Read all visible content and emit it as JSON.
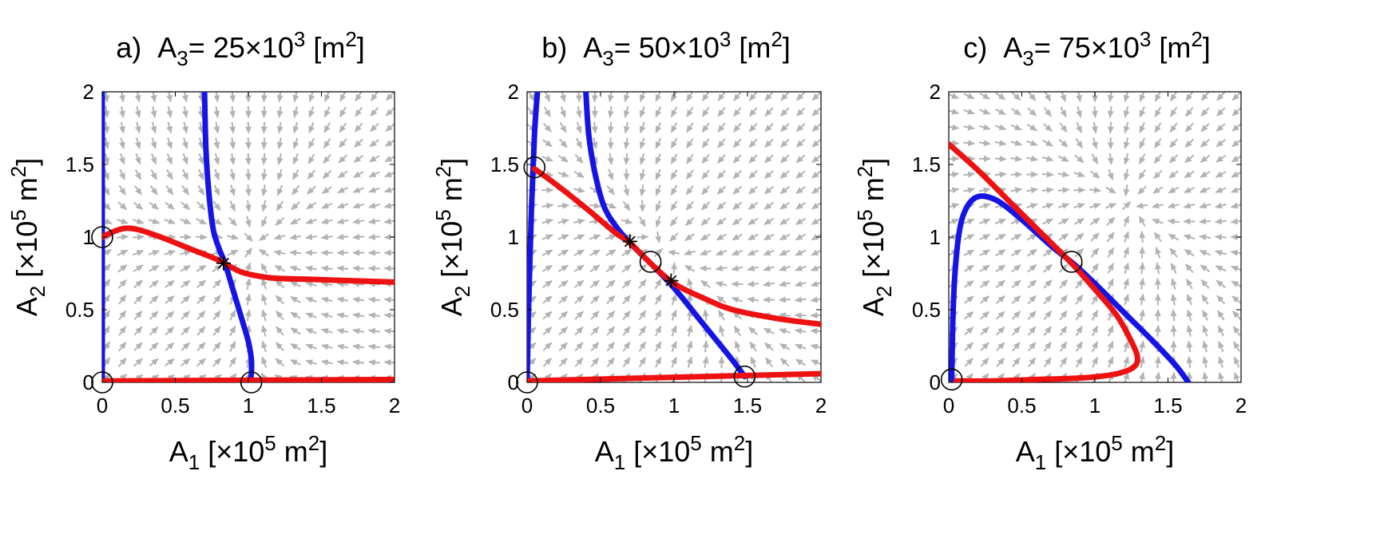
{
  "figure": {
    "colors": {
      "nullcline_a1": "#1414e6",
      "nullcline_a2": "#ee1111",
      "vector_field": "#b3b3b3",
      "axes": "#000000"
    }
  },
  "chart_data": [
    {
      "type": "line",
      "panel": "a)",
      "title": {
        "prefix": "a)",
        "var": "A",
        "sub": "3",
        "rest": "= 25×10",
        "exp": "3",
        "unit": " [m",
        "unit_exp": "2",
        "close": "]"
      },
      "xlabel": {
        "var": "A",
        "sub": "1",
        "rest": " [×10",
        "exp": "5",
        "unit": " m",
        "unit_exp": "2",
        "close": "]"
      },
      "ylabel": {
        "var": "A",
        "sub": "2",
        "rest": " [×10",
        "exp": "5",
        "unit": " m",
        "unit_exp": "2",
        "close": "]"
      },
      "xlim": [
        0,
        2
      ],
      "ylim": [
        0,
        2
      ],
      "xticks": [
        "0",
        "0.5",
        "1",
        "1.5",
        "2"
      ],
      "yticks": [
        "0",
        "0.5",
        "1",
        "1.5",
        "2"
      ],
      "vector_field": true,
      "series": [
        {
          "color": "blue",
          "x": [
            0,
            0
          ],
          "y": [
            0,
            2
          ]
        },
        {
          "color": "blue",
          "x": [
            0.7,
            0.71,
            0.73,
            0.76,
            0.8,
            0.84,
            0.9,
            0.96,
            1.0,
            1.02,
            1.02,
            1.01
          ],
          "y": [
            2.0,
            1.6,
            1.3,
            1.05,
            0.92,
            0.82,
            0.62,
            0.42,
            0.28,
            0.16,
            0.06,
            0.0
          ]
        },
        {
          "color": "red",
          "x": [
            0,
            2
          ],
          "y": [
            0.01,
            0.02
          ]
        },
        {
          "color": "red",
          "x": [
            0.0,
            0.06,
            0.15,
            0.25,
            0.4,
            0.6,
            0.8,
            0.95,
            1.15,
            1.4,
            1.7,
            2.0
          ],
          "y": [
            1.0,
            1.03,
            1.06,
            1.05,
            1.0,
            0.92,
            0.84,
            0.76,
            0.72,
            0.71,
            0.7,
            0.69
          ]
        }
      ],
      "circles": [
        {
          "x": 0.0,
          "y": 0.0
        },
        {
          "x": 0.0,
          "y": 1.0
        },
        {
          "x": 1.02,
          "y": 0.0
        }
      ],
      "stars": [
        {
          "x": 0.83,
          "y": 0.82
        }
      ]
    },
    {
      "type": "line",
      "panel": "b)",
      "title": {
        "prefix": "b)",
        "var": "A",
        "sub": "3",
        "rest": "= 50×10",
        "exp": "3",
        "unit": " [m",
        "unit_exp": "2",
        "close": "]"
      },
      "xlabel": {
        "var": "A",
        "sub": "1",
        "rest": " [×10",
        "exp": "5",
        "unit": " m",
        "unit_exp": "2",
        "close": "]"
      },
      "ylabel": {
        "var": "A",
        "sub": "2",
        "rest": " [×10",
        "exp": "5",
        "unit": " m",
        "unit_exp": "2",
        "close": "]"
      },
      "xlim": [
        0,
        2
      ],
      "ylim": [
        0,
        2
      ],
      "xticks": [
        "0",
        "0.5",
        "1",
        "1.5",
        "2"
      ],
      "yticks": [
        "0",
        "0.5",
        "1",
        "1.5",
        "2"
      ],
      "vector_field": true,
      "series": [
        {
          "color": "blue",
          "x": [
            0.0,
            0.01,
            0.03,
            0.05,
            0.07
          ],
          "y": [
            0.0,
            0.5,
            1.2,
            1.7,
            2.0
          ]
        },
        {
          "color": "blue",
          "x": [
            0.4,
            0.42,
            0.46,
            0.52,
            0.6,
            0.7,
            0.84,
            1.0,
            1.2,
            1.4,
            1.48
          ],
          "y": [
            2.0,
            1.7,
            1.45,
            1.22,
            1.08,
            0.96,
            0.82,
            0.65,
            0.4,
            0.15,
            0.04
          ]
        },
        {
          "color": "red",
          "x": [
            0,
            2
          ],
          "y": [
            0.01,
            0.06
          ]
        },
        {
          "color": "red",
          "x": [
            0.05,
            0.2,
            0.4,
            0.6,
            0.7,
            0.84,
            1.0,
            1.2,
            1.4,
            1.7,
            2.0
          ],
          "y": [
            1.47,
            1.36,
            1.2,
            1.03,
            0.96,
            0.82,
            0.68,
            0.58,
            0.5,
            0.44,
            0.4
          ]
        }
      ],
      "circles": [
        {
          "x": 0.0,
          "y": 0.0
        },
        {
          "x": 0.05,
          "y": 1.48
        },
        {
          "x": 0.84,
          "y": 0.83
        },
        {
          "x": 1.48,
          "y": 0.04
        }
      ],
      "stars": [
        {
          "x": 0.7,
          "y": 0.97
        },
        {
          "x": 0.98,
          "y": 0.7
        }
      ]
    },
    {
      "type": "line",
      "panel": "c)",
      "title": {
        "prefix": "c)",
        "var": "A",
        "sub": "3",
        "rest": "= 75×10",
        "exp": "3",
        "unit": " [m",
        "unit_exp": "2",
        "close": "]"
      },
      "xlabel": {
        "var": "A",
        "sub": "1",
        "rest": " [×10",
        "exp": "5",
        "unit": " m",
        "unit_exp": "2",
        "close": "]"
      },
      "ylabel": {
        "var": "A",
        "sub": "2",
        "rest": " [×10",
        "exp": "5",
        "unit": " m",
        "unit_exp": "2",
        "close": "]"
      },
      "xlim": [
        0,
        2
      ],
      "ylim": [
        0,
        2
      ],
      "xticks": [
        "0",
        "0.5",
        "1",
        "1.5",
        "2"
      ],
      "yticks": [
        "0",
        "0.5",
        "1",
        "1.5",
        "2"
      ],
      "vector_field": true,
      "series": [
        {
          "color": "blue",
          "x": [
            0.02,
            0.03,
            0.05,
            0.08,
            0.12,
            0.18,
            0.25,
            0.35,
            0.5,
            0.7,
            0.85,
            1.0,
            1.2,
            1.4,
            1.55,
            1.64
          ],
          "y": [
            0.02,
            0.5,
            0.85,
            1.08,
            1.2,
            1.27,
            1.28,
            1.24,
            1.12,
            0.94,
            0.82,
            0.68,
            0.48,
            0.28,
            0.12,
            0.0
          ]
        },
        {
          "color": "red",
          "x": [
            0.0,
            0.2,
            0.4,
            0.6,
            0.84,
            1.0,
            1.15,
            1.25,
            1.29,
            1.28,
            1.22,
            1.1,
            0.9,
            0.6,
            0.3,
            0.05
          ],
          "y": [
            1.64,
            1.46,
            1.26,
            1.06,
            0.82,
            0.64,
            0.46,
            0.28,
            0.18,
            0.12,
            0.08,
            0.05,
            0.03,
            0.02,
            0.01,
            0.01
          ]
        }
      ],
      "circles": [
        {
          "x": 0.02,
          "y": 0.02
        },
        {
          "x": 0.84,
          "y": 0.83
        }
      ],
      "stars": []
    }
  ]
}
